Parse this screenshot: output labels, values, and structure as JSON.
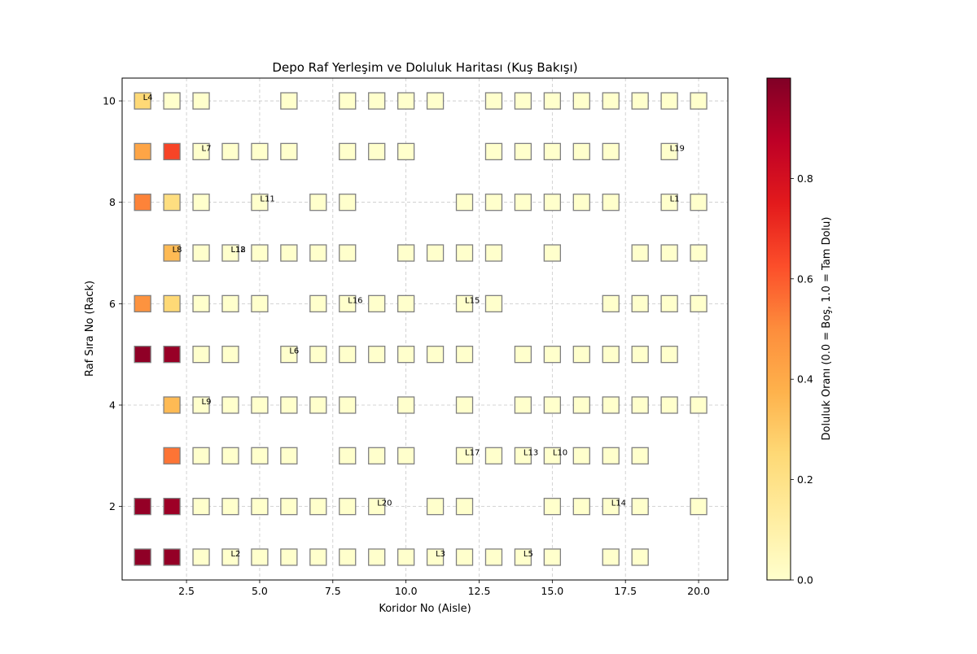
{
  "chart_data": {
    "type": "heatmap",
    "title": "Depo Raf Yerleşim ve Doluluk Haritası (Kuş Bakışı)",
    "xlabel": "Koridor No (Aisle)",
    "ylabel": "Raf Sıra No (Rack)",
    "xlim": [
      0.3,
      21.0
    ],
    "ylim": [
      0.55,
      10.45
    ],
    "xticks": [
      2.5,
      5.0,
      7.5,
      10.0,
      12.5,
      15.0,
      17.5,
      20.0
    ],
    "xtick_labels": [
      "2.5",
      "5.0",
      "7.5",
      "10.0",
      "12.5",
      "15.0",
      "17.5",
      "20.0"
    ],
    "yticks": [
      2,
      4,
      6,
      8,
      10
    ],
    "ytick_labels": [
      "2",
      "4",
      "6",
      "8",
      "10"
    ],
    "grid": true,
    "colorbar": {
      "label": "Doluluk Oranı (0.0 = Boş, 1.0 = Tam Dolu)",
      "range": [
        0.0,
        1.0
      ],
      "ticks": [
        0.0,
        0.2,
        0.4,
        0.6,
        0.8
      ],
      "tick_labels": [
        "0.0",
        "0.2",
        "0.4",
        "0.6",
        "0.8"
      ],
      "colormap": [
        "#ffffcc",
        "#ffeda0",
        "#fed976",
        "#feb24c",
        "#fd8d3c",
        "#fc4e2a",
        "#e31a1c",
        "#bd0026",
        "#800026"
      ]
    },
    "rows": [
      {
        "rack": 10,
        "cells": [
          [
            1,
            0.25
          ],
          [
            2,
            0
          ],
          [
            3,
            0
          ],
          [
            6,
            0
          ],
          [
            8,
            0
          ],
          [
            9,
            0
          ],
          [
            10,
            0
          ],
          [
            11,
            0
          ],
          [
            13,
            0
          ],
          [
            14,
            0
          ],
          [
            15,
            0
          ],
          [
            16,
            0
          ],
          [
            17,
            0
          ],
          [
            18,
            0
          ],
          [
            19,
            0
          ],
          [
            20,
            0
          ]
        ]
      },
      {
        "rack": 9,
        "cells": [
          [
            1,
            0.42
          ],
          [
            2,
            0.65
          ],
          [
            3,
            0
          ],
          [
            4,
            0
          ],
          [
            5,
            0
          ],
          [
            6,
            0
          ],
          [
            8,
            0
          ],
          [
            9,
            0
          ],
          [
            10,
            0
          ],
          [
            13,
            0
          ],
          [
            14,
            0
          ],
          [
            15,
            0
          ],
          [
            16,
            0
          ],
          [
            17,
            0
          ],
          [
            19,
            0
          ]
        ]
      },
      {
        "rack": 8,
        "cells": [
          [
            1,
            0.52
          ],
          [
            2,
            0.22
          ],
          [
            3,
            0
          ],
          [
            5,
            0
          ],
          [
            7,
            0
          ],
          [
            8,
            0
          ],
          [
            12,
            0
          ],
          [
            13,
            0
          ],
          [
            14,
            0
          ],
          [
            15,
            0
          ],
          [
            16,
            0
          ],
          [
            17,
            0
          ],
          [
            19,
            0
          ],
          [
            20,
            0
          ]
        ]
      },
      {
        "rack": 7,
        "cells": [
          [
            2,
            0.35
          ],
          [
            3,
            0
          ],
          [
            4,
            0
          ],
          [
            5,
            0
          ],
          [
            6,
            0
          ],
          [
            7,
            0
          ],
          [
            8,
            0
          ],
          [
            10,
            0
          ],
          [
            11,
            0
          ],
          [
            12,
            0
          ],
          [
            13,
            0
          ],
          [
            15,
            0
          ],
          [
            18,
            0
          ],
          [
            19,
            0
          ],
          [
            20,
            0
          ]
        ]
      },
      {
        "rack": 6,
        "cells": [
          [
            1,
            0.48
          ],
          [
            2,
            0.25
          ],
          [
            3,
            0
          ],
          [
            4,
            0
          ],
          [
            5,
            0
          ],
          [
            7,
            0
          ],
          [
            8,
            0
          ],
          [
            9,
            0
          ],
          [
            10,
            0
          ],
          [
            12,
            0
          ],
          [
            13,
            0
          ],
          [
            17,
            0
          ],
          [
            18,
            0
          ],
          [
            19,
            0
          ],
          [
            20,
            0
          ]
        ]
      },
      {
        "rack": 5,
        "cells": [
          [
            1,
            0.97
          ],
          [
            2,
            0.95
          ],
          [
            3,
            0
          ],
          [
            4,
            0
          ],
          [
            6,
            0
          ],
          [
            7,
            0
          ],
          [
            8,
            0
          ],
          [
            9,
            0
          ],
          [
            10,
            0
          ],
          [
            11,
            0
          ],
          [
            12,
            0
          ],
          [
            14,
            0
          ],
          [
            15,
            0
          ],
          [
            16,
            0
          ],
          [
            17,
            0
          ],
          [
            18,
            0
          ],
          [
            19,
            0
          ]
        ]
      },
      {
        "rack": 4,
        "cells": [
          [
            2,
            0.35
          ],
          [
            3,
            0
          ],
          [
            4,
            0
          ],
          [
            5,
            0
          ],
          [
            6,
            0
          ],
          [
            7,
            0
          ],
          [
            8,
            0
          ],
          [
            10,
            0
          ],
          [
            12,
            0
          ],
          [
            14,
            0
          ],
          [
            15,
            0
          ],
          [
            16,
            0
          ],
          [
            17,
            0
          ],
          [
            18,
            0
          ],
          [
            19,
            0
          ],
          [
            20,
            0
          ]
        ]
      },
      {
        "rack": 3,
        "cells": [
          [
            2,
            0.55
          ],
          [
            3,
            0
          ],
          [
            4,
            0
          ],
          [
            5,
            0
          ],
          [
            6,
            0
          ],
          [
            8,
            0
          ],
          [
            9,
            0
          ],
          [
            10,
            0
          ],
          [
            12,
            0
          ],
          [
            13,
            0
          ],
          [
            14,
            0
          ],
          [
            15,
            0
          ],
          [
            16,
            0
          ],
          [
            17,
            0
          ],
          [
            18,
            0
          ]
        ]
      },
      {
        "rack": 2,
        "cells": [
          [
            1,
            0.96
          ],
          [
            2,
            0.94
          ],
          [
            3,
            0
          ],
          [
            4,
            0
          ],
          [
            5,
            0
          ],
          [
            6,
            0
          ],
          [
            7,
            0
          ],
          [
            8,
            0
          ],
          [
            9,
            0
          ],
          [
            11,
            0
          ],
          [
            12,
            0
          ],
          [
            15,
            0
          ],
          [
            16,
            0
          ],
          [
            17,
            0
          ],
          [
            18,
            0
          ],
          [
            20,
            0
          ]
        ]
      },
      {
        "rack": 1,
        "cells": [
          [
            1,
            0.97
          ],
          [
            2,
            0.96
          ],
          [
            3,
            0
          ],
          [
            4,
            0
          ],
          [
            5,
            0
          ],
          [
            6,
            0
          ],
          [
            7,
            0
          ],
          [
            8,
            0
          ],
          [
            9,
            0
          ],
          [
            10,
            0
          ],
          [
            11,
            0
          ],
          [
            12,
            0
          ],
          [
            13,
            0
          ],
          [
            14,
            0
          ],
          [
            15,
            0
          ],
          [
            17,
            0
          ],
          [
            18,
            0
          ]
        ]
      }
    ],
    "annotations": [
      {
        "text": "L4",
        "x": 1,
        "y": 10
      },
      {
        "text": "L7",
        "x": 3,
        "y": 9
      },
      {
        "text": "L19",
        "x": 19,
        "y": 9
      },
      {
        "text": "L11",
        "x": 5,
        "y": 8
      },
      {
        "text": "L1",
        "x": 19,
        "y": 8
      },
      {
        "text": "L8",
        "x": 2,
        "y": 7
      },
      {
        "text": "L18",
        "x": 4,
        "y": 7
      },
      {
        "text": "L12",
        "x": 4,
        "y": 7
      },
      {
        "text": "L16",
        "x": 8,
        "y": 6
      },
      {
        "text": "L15",
        "x": 12,
        "y": 6
      },
      {
        "text": "L6",
        "x": 6,
        "y": 5
      },
      {
        "text": "L9",
        "x": 3,
        "y": 4
      },
      {
        "text": "L17",
        "x": 12,
        "y": 3
      },
      {
        "text": "L13",
        "x": 14,
        "y": 3
      },
      {
        "text": "L10",
        "x": 15,
        "y": 3
      },
      {
        "text": "L20",
        "x": 9,
        "y": 2
      },
      {
        "text": "L14",
        "x": 17,
        "y": 2
      },
      {
        "text": "L2",
        "x": 4,
        "y": 1
      },
      {
        "text": "L3",
        "x": 11,
        "y": 1
      },
      {
        "text": "L5",
        "x": 14,
        "y": 1
      }
    ]
  }
}
